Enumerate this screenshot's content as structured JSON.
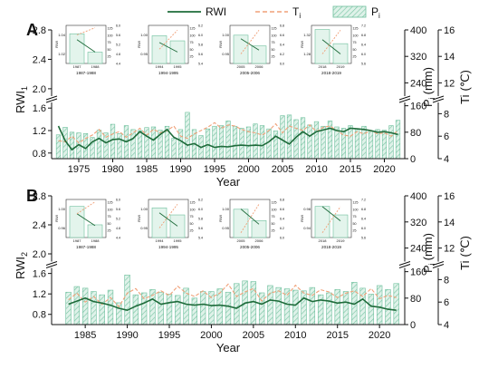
{
  "legend": {
    "rwi_label": "RWI",
    "ti_label": "T",
    "ti_sub": "i",
    "pi_label": "P",
    "pi_sub": "i"
  },
  "colors": {
    "rwi": "#1e6b3a",
    "ti": "#f0a078",
    "pi_fill": "#d6efe4",
    "pi_hatch": "#7cc6a6",
    "pi_stroke": "#6dbf9c"
  },
  "chart_data": [
    {
      "type": "bar",
      "panel_letter": "A",
      "ylabel_left": "RWI",
      "ylabel_left_sub": "1",
      "ylabel_right_p": "P",
      "ylabel_right_p_sub": "i",
      "ylabel_right_p_unit": "(mm)",
      "ylabel_right_t": "Ti",
      "ylabel_right_t_unit": "(℃)",
      "xlabel": "Year",
      "xlim": [
        1971,
        2023
      ],
      "xticks": [
        1975,
        1980,
        1985,
        1990,
        1995,
        2000,
        2005,
        2010,
        2015,
        2020
      ],
      "left_axis": {
        "lower_ticks": [
          "0.8",
          "1.2",
          "1.6"
        ],
        "lower_range": [
          0.7,
          1.7
        ],
        "upper_ticks": [
          "2.0",
          "2.4",
          "2.8"
        ],
        "upper_range": [
          1.9,
          2.8
        ]
      },
      "right_p_axis": {
        "lower_ticks": [
          "0",
          "80",
          "160"
        ],
        "lower_range": [
          0,
          170
        ],
        "upper_ticks": [
          "240",
          "320",
          "400"
        ],
        "upper_range": [
          200,
          400
        ]
      },
      "right_t_axis": {
        "lower_ticks": [
          "4",
          "6",
          "8"
        ],
        "lower_range": [
          4,
          9
        ],
        "upper_ticks": [
          "12",
          "14",
          "16"
        ],
        "upper_range": [
          11,
          16
        ]
      },
      "years": [
        1972,
        1973,
        1974,
        1975,
        1976,
        1977,
        1978,
        1979,
        1980,
        1981,
        1982,
        1983,
        1984,
        1985,
        1986,
        1987,
        1988,
        1989,
        1990,
        1991,
        1992,
        1993,
        1994,
        1995,
        1996,
        1997,
        1998,
        1999,
        2000,
        2001,
        2002,
        2003,
        2004,
        2005,
        2006,
        2007,
        2008,
        2009,
        2010,
        2011,
        2012,
        2013,
        2014,
        2015,
        2016,
        2017,
        2018,
        2019,
        2020,
        2021,
        2022
      ],
      "series": [
        {
          "name": "RWI",
          "kind": "line",
          "values": [
            1.28,
            1.02,
            0.86,
            0.95,
            0.88,
            1.0,
            1.06,
            0.98,
            1.04,
            1.05,
            1.0,
            1.06,
            1.18,
            1.1,
            1.03,
            1.13,
            1.22,
            1.08,
            1.02,
            0.94,
            0.97,
            0.9,
            0.95,
            0.9,
            0.92,
            0.91,
            0.93,
            0.94,
            0.93,
            0.94,
            0.93,
            1.0,
            1.1,
            1.03,
            0.96,
            1.08,
            1.18,
            1.1,
            1.18,
            1.21,
            1.24,
            1.2,
            1.18,
            1.24,
            1.23,
            1.22,
            1.2,
            1.17,
            1.18,
            1.16,
            1.13
          ]
        },
        {
          "name": "Ti",
          "kind": "dashed",
          "values": [
            5.6,
            5.5,
            6.0,
            5.4,
            5.8,
            6.1,
            6.6,
            5.9,
            6.2,
            6.4,
            5.9,
            6.3,
            6.7,
            6.1,
            6.6,
            6.3,
            6.5,
            6.9,
            6.0,
            5.8,
            6.2,
            6.5,
            6.8,
            7.2,
            6.7,
            7.0,
            6.9,
            6.6,
            6.4,
            6.3,
            6.1,
            6.5,
            7.1,
            6.3,
            6.9,
            6.7,
            6.5,
            7.0,
            6.4,
            6.8,
            6.9,
            6.5,
            6.1,
            6.0,
            6.4,
            6.2,
            6.5,
            6.2,
            6.3,
            6.0,
            6.5
          ]
        },
        {
          "name": "Pi",
          "kind": "bar",
          "values": [
            72,
            95,
            80,
            78,
            76,
            64,
            86,
            78,
            104,
            76,
            100,
            88,
            85,
            94,
            96,
            86,
            98,
            62,
            88,
            140,
            88,
            70,
            90,
            98,
            100,
            114,
            98,
            92,
            96,
            105,
            100,
            90,
            84,
            130,
            132,
            118,
            124,
            102,
            112,
            98,
            114,
            96,
            92,
            100,
            90,
            98,
            84,
            88,
            86,
            100,
            116
          ]
        }
      ],
      "insets": [
        {
          "label": "1987-1988",
          "xticks": [
            "1987",
            "1988"
          ],
          "y1_ticks": [
            "1.02",
            "1.04"
          ],
          "y2_ticks": [
            "25",
            "50",
            "75",
            "100",
            "125"
          ],
          "y3_ticks": [
            "4.4",
            "4.8",
            "5.2",
            "5.6",
            "6.0"
          ],
          "bars": [
            105,
            40
          ],
          "rwi": [
            1.035,
            1.022
          ],
          "ti": [
            5.6,
            5.9
          ]
        },
        {
          "label": "1994-1995",
          "xticks": [
            "1994",
            "1995"
          ],
          "y1_ticks": [
            "0.95",
            "1.00"
          ],
          "y2_ticks": [
            "25",
            "50",
            "75",
            "100",
            "125"
          ],
          "y3_ticks": [
            "5.4",
            "5.6",
            "5.8",
            "6.0",
            "6.2"
          ],
          "bars": [
            98,
            80
          ],
          "rwi": [
            0.98,
            0.955
          ],
          "ti": [
            5.7,
            6.1
          ]
        },
        {
          "label": "2005-2006",
          "xticks": [
            "2005",
            "2006"
          ],
          "y1_ticks": [
            "0.95",
            "1.00"
          ],
          "y2_ticks": [
            "25",
            "50",
            "75",
            "100",
            "125"
          ],
          "y3_ticks": [
            "6.0",
            "6.2",
            "6.4",
            "6.6",
            "6.8"
          ],
          "bars": [
            100,
            62
          ],
          "rwi": [
            0.99,
            0.96
          ],
          "ti": [
            6.2,
            6.7
          ]
        },
        {
          "label": "2018-2019",
          "xticks": [
            "2018",
            "2019"
          ],
          "y1_ticks": [
            "1.28",
            "1.32"
          ],
          "y2_ticks": [
            "25",
            "50",
            "75",
            "100",
            "125"
          ],
          "y3_ticks": [
            "5.6",
            "6.0",
            "6.4",
            "6.8",
            "7.2"
          ],
          "bars": [
            120,
            70
          ],
          "rwi": [
            1.31,
            1.28
          ],
          "ti": [
            6.0,
            7.0
          ]
        }
      ]
    },
    {
      "type": "bar",
      "panel_letter": "B",
      "ylabel_left": "RWI",
      "ylabel_left_sub": "2",
      "ylabel_right_p": "P",
      "ylabel_right_p_sub": "i",
      "ylabel_right_p_unit": "(mm)",
      "ylabel_right_t": "Ti",
      "ylabel_right_t_unit": "(℃)",
      "xlabel": "Year",
      "xlim": [
        1981,
        2023
      ],
      "xticks": [
        1985,
        1990,
        1995,
        2000,
        2005,
        2010,
        2015,
        2020
      ],
      "left_axis": {
        "lower_ticks": [
          "0.8",
          "1.2",
          "1.6"
        ],
        "lower_range": [
          0.6,
          1.7
        ],
        "upper_ticks": [
          "2.0",
          "2.4",
          "2.8"
        ],
        "upper_range": [
          1.9,
          2.8
        ]
      },
      "right_p_axis": {
        "lower_ticks": [
          "0",
          "80",
          "160"
        ],
        "lower_range": [
          0,
          170
        ],
        "upper_ticks": [
          "240",
          "320",
          "400"
        ],
        "upper_range": [
          200,
          400
        ]
      },
      "right_t_axis": {
        "lower_ticks": [
          "4",
          "6",
          "8"
        ],
        "lower_range": [
          4,
          9
        ],
        "upper_ticks": [
          "12",
          "14",
          "16"
        ],
        "upper_range": [
          11,
          16
        ]
      },
      "years": [
        1983,
        1984,
        1985,
        1986,
        1987,
        1988,
        1989,
        1990,
        1991,
        1992,
        1993,
        1994,
        1995,
        1996,
        1997,
        1998,
        1999,
        2000,
        2001,
        2002,
        2003,
        2004,
        2005,
        2006,
        2007,
        2008,
        2009,
        2010,
        2011,
        2012,
        2013,
        2014,
        2015,
        2016,
        2017,
        2018,
        2019,
        2020,
        2021,
        2022
      ],
      "series": [
        {
          "name": "RWI",
          "kind": "line",
          "values": [
            1.0,
            1.06,
            1.12,
            1.05,
            1.02,
            0.98,
            0.92,
            0.88,
            0.96,
            1.02,
            1.1,
            1.0,
            1.03,
            1.05,
            1.0,
            0.98,
            1.0,
            0.97,
            0.98,
            0.96,
            0.92,
            1.02,
            1.05,
            1.0,
            1.08,
            1.06,
            1.0,
            0.98,
            1.12,
            1.05,
            1.08,
            1.06,
            1.02,
            1.04,
            1.0,
            1.1,
            0.96,
            0.94,
            0.9,
            0.88
          ]
        },
        {
          "name": "Ti",
          "kind": "dashed",
          "values": [
            6.2,
            6.8,
            6.0,
            6.5,
            5.8,
            6.4,
            5.6,
            6.8,
            7.2,
            6.3,
            6.6,
            7.0,
            6.6,
            7.4,
            6.8,
            6.5,
            7.0,
            6.4,
            6.8,
            7.6,
            6.5,
            6.9,
            7.2,
            6.1,
            6.8,
            7.0,
            6.6,
            7.5,
            6.8,
            6.6,
            7.1,
            6.9,
            6.4,
            6.8,
            7.0,
            6.5,
            7.2,
            6.3,
            6.6,
            6.4
          ]
        },
        {
          "name": "Pi",
          "kind": "bar",
          "values": [
            98,
            115,
            110,
            100,
            90,
            104,
            66,
            150,
            90,
            96,
            106,
            98,
            92,
            88,
            110,
            80,
            100,
            100,
            108,
            98,
            124,
            132,
            130,
            96,
            118,
            112,
            108,
            104,
            102,
            112,
            90,
            96,
            106,
            100,
            128,
            110,
            92,
            118,
            106,
            124
          ]
        }
      ],
      "insets": [
        {
          "label": "1987-1988",
          "xticks": [
            "1987",
            "1988"
          ],
          "y1_ticks": [
            "0.96",
            "1.00"
          ],
          "y2_ticks": [
            "25",
            "50",
            "75",
            "100",
            "125"
          ],
          "y3_ticks": [
            "4.4",
            "4.8",
            "5.2",
            "5.6",
            "6.0"
          ],
          "bars": [
            110,
            45
          ],
          "rwi": [
            0.99,
            0.965
          ],
          "ti": [
            5.4,
            5.9
          ]
        },
        {
          "label": "1994-1995",
          "xticks": [
            "1994",
            "1995"
          ],
          "y1_ticks": [
            "0.95",
            "1.00"
          ],
          "y2_ticks": [
            "25",
            "50",
            "75",
            "100",
            "125"
          ],
          "y3_ticks": [
            "5.4",
            "5.6",
            "5.8",
            "6.0",
            "6.2"
          ],
          "bars": [
            105,
            80
          ],
          "rwi": [
            0.99,
            0.955
          ],
          "ti": [
            5.6,
            6.1
          ]
        },
        {
          "label": "2005-2006",
          "xticks": [
            "2005",
            "2006"
          ],
          "y1_ticks": [
            "0.95",
            "1.00"
          ],
          "y2_ticks": [
            "25",
            "50",
            "75",
            "100",
            "125"
          ],
          "y3_ticks": [
            "6.0",
            "6.2",
            "6.4",
            "6.6",
            "6.8"
          ],
          "bars": [
            100,
            60
          ],
          "rwi": [
            1.0,
            0.96
          ],
          "ti": [
            6.1,
            6.7
          ]
        },
        {
          "label": "2018-2019",
          "xticks": [
            "2018",
            "2019"
          ],
          "y1_ticks": [
            "0.94",
            "0.98"
          ],
          "y2_ticks": [
            "25",
            "50",
            "75",
            "100",
            "125"
          ],
          "y3_ticks": [
            "5.6",
            "6.0",
            "6.4",
            "6.8",
            "7.2"
          ],
          "bars": [
            110,
            80
          ],
          "rwi": [
            0.985,
            0.955
          ],
          "ti": [
            5.8,
            6.9
          ]
        }
      ]
    }
  ]
}
